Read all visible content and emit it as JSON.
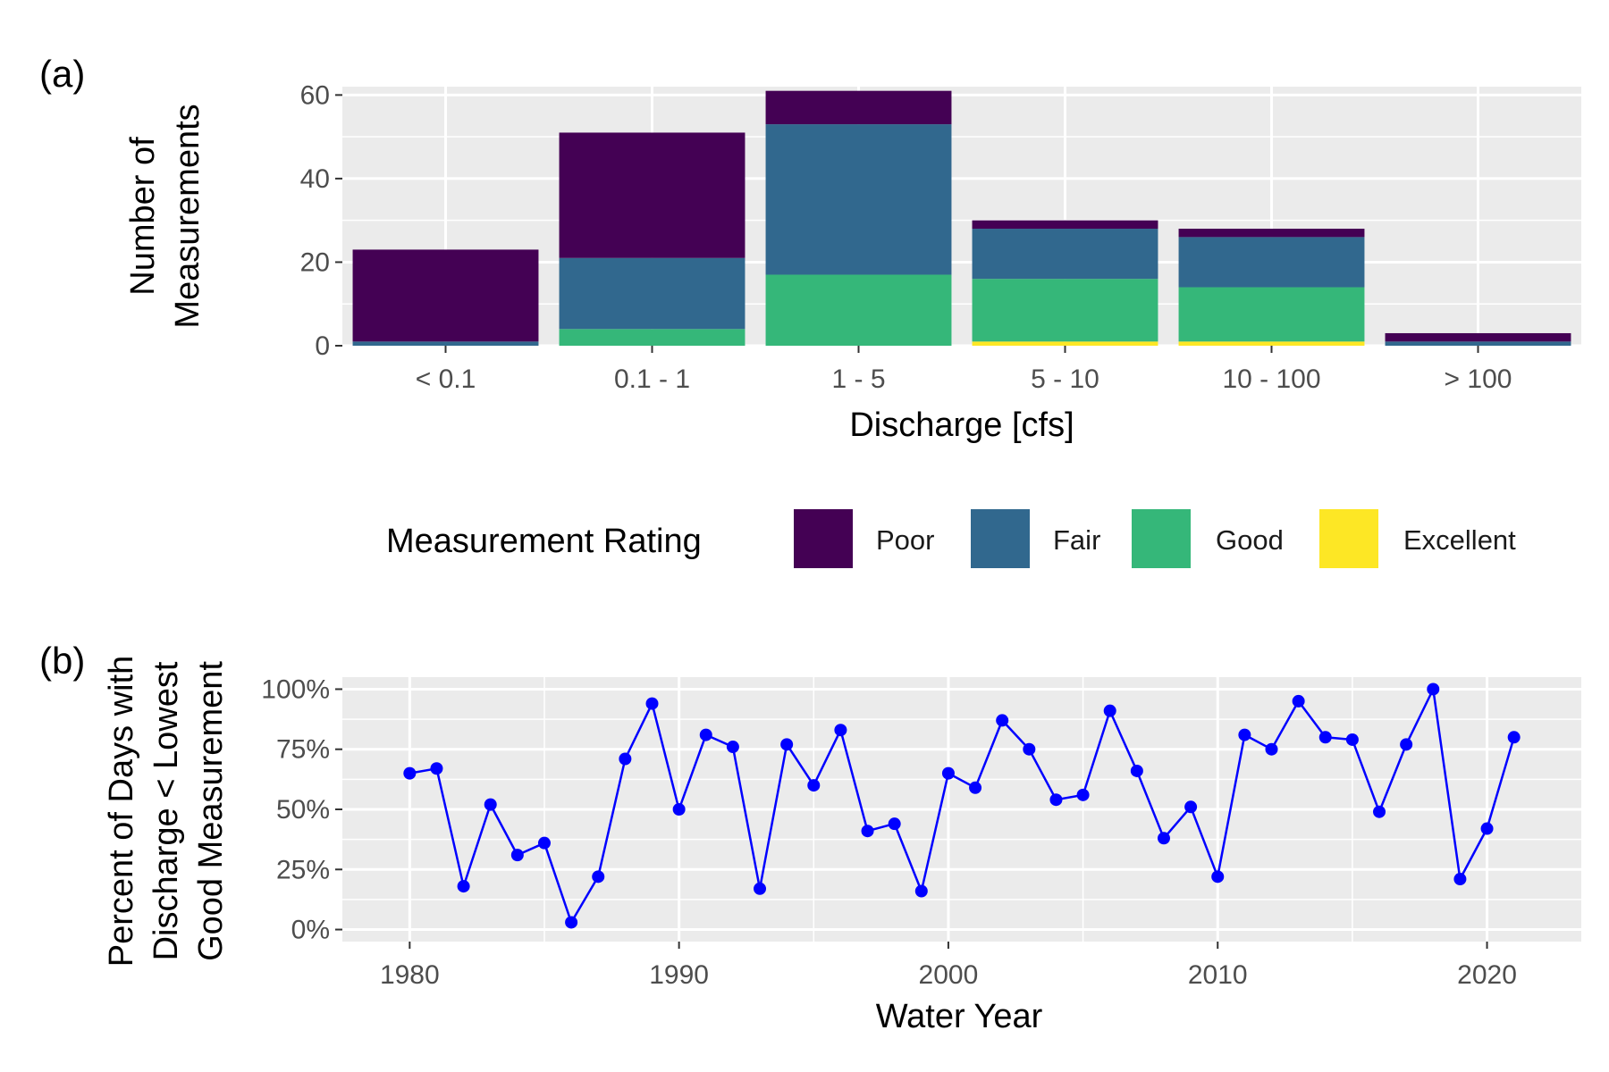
{
  "chart_data": [
    {
      "panel_tag": "(a)",
      "type": "bar",
      "stacked": true,
      "categories": [
        "< 0.1",
        "0.1 - 1",
        "1 - 5",
        "5 - 10",
        "10 - 100",
        "> 100"
      ],
      "series": [
        {
          "name": "Excellent",
          "color": "#fde725",
          "values": [
            0,
            0,
            0,
            1,
            1,
            0
          ]
        },
        {
          "name": "Good",
          "color": "#35b779",
          "values": [
            0,
            4,
            17,
            15,
            13,
            0
          ]
        },
        {
          "name": "Fair",
          "color": "#31688e",
          "values": [
            1,
            17,
            36,
            12,
            12,
            1
          ]
        },
        {
          "name": "Poor",
          "color": "#440154",
          "values": [
            22,
            30,
            8,
            2,
            2,
            2
          ]
        }
      ],
      "xlabel": "Discharge [cfs]",
      "ylabel_lines": [
        "Number of",
        "Measurements"
      ],
      "ylim": [
        0,
        62
      ],
      "yticks": [
        0,
        20,
        40,
        60
      ],
      "grid": true,
      "legend": {
        "title": "Measurement Rating",
        "position": "bottom",
        "items": [
          {
            "label": "Poor",
            "color": "#440154"
          },
          {
            "label": "Fair",
            "color": "#31688e"
          },
          {
            "label": "Good",
            "color": "#35b779"
          },
          {
            "label": "Excellent",
            "color": "#fde725"
          }
        ]
      }
    },
    {
      "panel_tag": "(b)",
      "type": "line",
      "markers": true,
      "color": "#0000ff",
      "x": [
        1980,
        1981,
        1982,
        1983,
        1984,
        1985,
        1986,
        1987,
        1988,
        1989,
        1990,
        1991,
        1992,
        1993,
        1994,
        1995,
        1996,
        1997,
        1998,
        1999,
        2000,
        2001,
        2002,
        2003,
        2004,
        2005,
        2006,
        2007,
        2008,
        2009,
        2010,
        2011,
        2012,
        2013,
        2014,
        2015,
        2016,
        2017,
        2018,
        2019,
        2020,
        2021
      ],
      "values": [
        65,
        67,
        18,
        52,
        31,
        36,
        3,
        22,
        71,
        94,
        50,
        81,
        76,
        17,
        77,
        60,
        83,
        41,
        44,
        16,
        65,
        59,
        87,
        75,
        54,
        56,
        91,
        66,
        38,
        51,
        22,
        81,
        75,
        95,
        80,
        79,
        49,
        77,
        100,
        21,
        42,
        80
      ],
      "xlabel": "Water Year",
      "ylabel_lines": [
        "Percent of Days with",
        "Discharge < Lowest",
        "Good Measurement"
      ],
      "xlim": [
        1977.5,
        2023.5
      ],
      "xticks": [
        1980,
        1990,
        2000,
        2010,
        2020
      ],
      "ylim": [
        -5,
        105
      ],
      "yticks": [
        0,
        25,
        50,
        75,
        100
      ],
      "ytick_labels": [
        "0%",
        "25%",
        "50%",
        "75%",
        "100%"
      ],
      "grid": true
    }
  ]
}
